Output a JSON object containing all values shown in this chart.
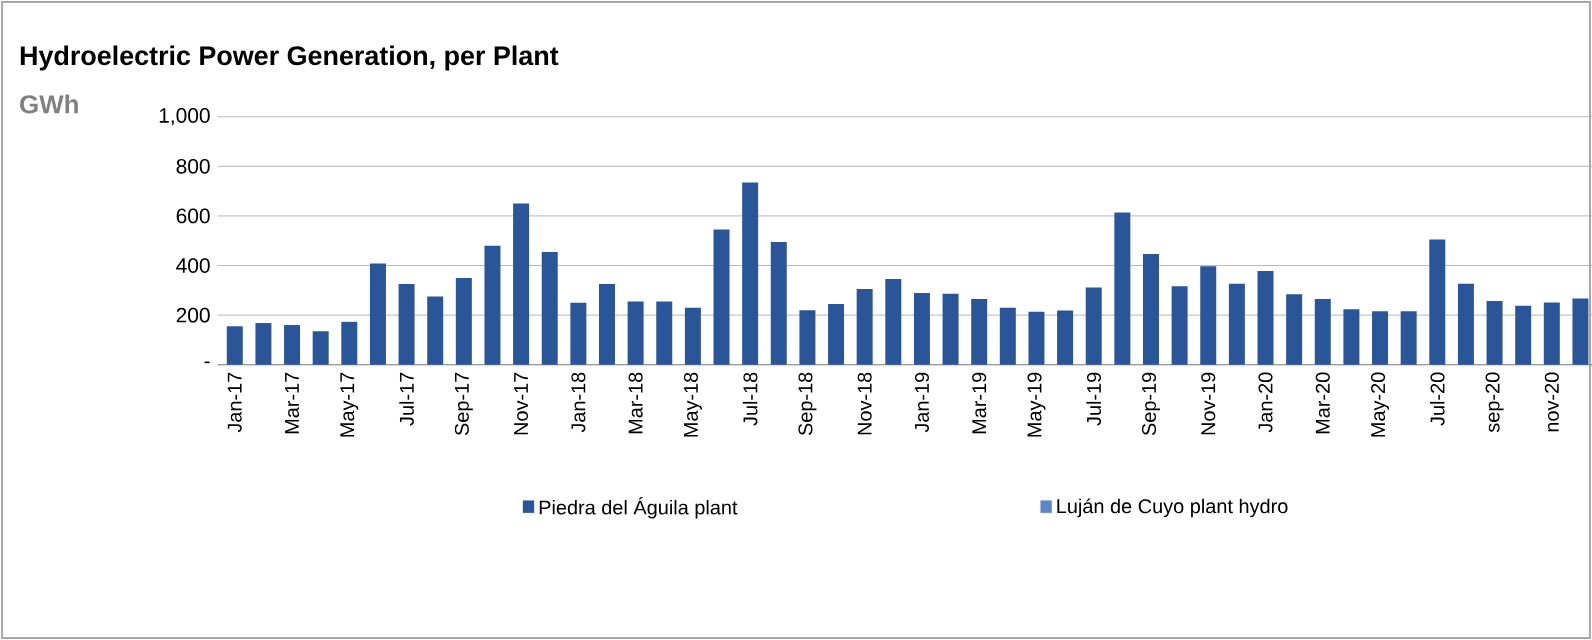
{
  "chart_data": {
    "type": "bar",
    "title": "Hydroelectric Power Generation, per Plant",
    "ylabel": "GWh",
    "categories": [
      "Jan-17",
      null,
      "Mar-17",
      null,
      "May-17",
      null,
      "Jul-17",
      null,
      "Sep-17",
      null,
      "Nov-17",
      null,
      "Jan-18",
      null,
      "Mar-18",
      null,
      "May-18",
      null,
      "Jul-18",
      null,
      "Sep-18",
      null,
      "Nov-18",
      null,
      "Jan-19",
      null,
      "Mar-19",
      null,
      "May-19",
      null,
      "Jul-19",
      null,
      "Sep-19",
      null,
      "Nov-19",
      null,
      "Jan-20",
      null,
      "Mar-20",
      null,
      "May-20",
      null,
      "Jul-20",
      null,
      "sep-20",
      null,
      "nov-20",
      null
    ],
    "series": [
      {
        "name": "Piedra del Águila plant",
        "color": "#2a5699",
        "values": [
          155,
          168,
          160,
          135,
          173,
          408,
          325,
          275,
          350,
          480,
          650,
          455,
          250,
          325,
          255,
          255,
          230,
          545,
          735,
          495,
          220,
          245,
          305,
          346,
          289,
          286,
          265,
          230,
          214,
          219,
          311,
          614,
          446,
          316,
          397,
          327,
          378,
          284,
          265,
          224,
          216,
          216,
          505,
          327,
          257,
          238,
          251,
          267
        ]
      },
      {
        "name": "Luján de Cuyo plant hydro",
        "color": "#5b87c5",
        "values": [
          0,
          0,
          0,
          0,
          0,
          0,
          0,
          0,
          0,
          0,
          0,
          0,
          0,
          0,
          0,
          0,
          0,
          0,
          0,
          0,
          0,
          0,
          0,
          0,
          0,
          0,
          0,
          0,
          0,
          0,
          0,
          0,
          0,
          0,
          0,
          0,
          0,
          0,
          0,
          0,
          0,
          0,
          0,
          0,
          0,
          0,
          0,
          0
        ]
      }
    ],
    "stacked": true,
    "ylim": [
      0,
      1000
    ],
    "yticks": [
      {
        "value": 0,
        "label": "-"
      },
      200,
      400,
      600,
      800,
      {
        "value": 1000,
        "label": "1,000"
      }
    ],
    "grid": "y",
    "legend": "bottom"
  }
}
